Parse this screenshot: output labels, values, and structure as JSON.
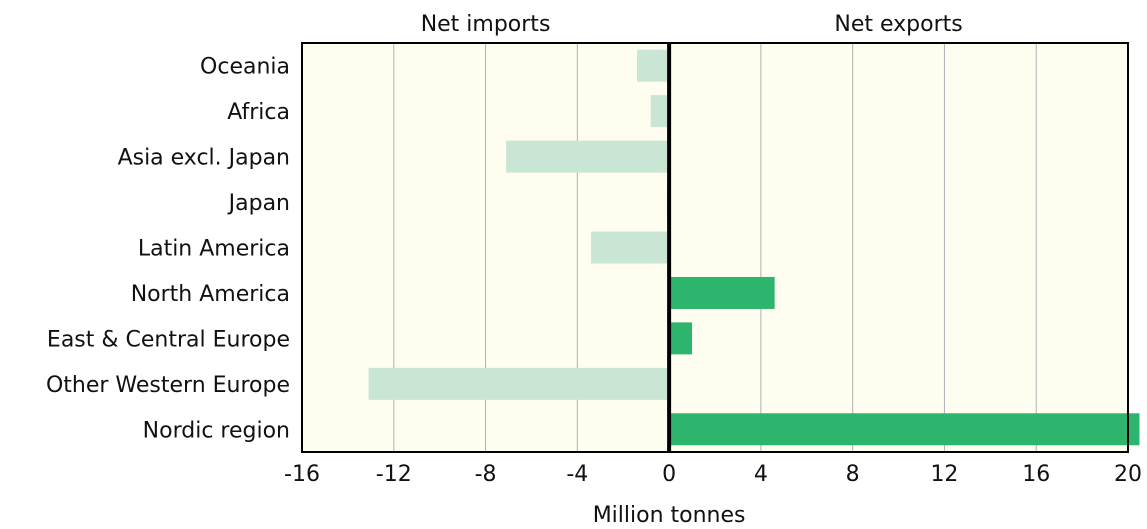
{
  "chart_data": {
    "type": "bar",
    "orientation": "horizontal",
    "categories": [
      "Oceania",
      "Africa",
      "Asia excl. Japan",
      "Japan",
      "Latin America",
      "North America",
      "East & Central Europe",
      "Other Western Europe",
      "Nordic region"
    ],
    "values": [
      -1.4,
      -0.8,
      -7.1,
      -0.1,
      -3.4,
      4.6,
      1.0,
      -13.1,
      20.5
    ],
    "xlabel": "Million tonnes",
    "xlim": [
      -16,
      20
    ],
    "xticks": [
      -16,
      -12,
      -8,
      -4,
      0,
      4,
      8,
      12,
      16,
      20
    ],
    "xtick_labels": [
      "-16",
      "-12",
      "-8",
      "-4",
      "0",
      "4",
      "8",
      "12",
      "16",
      "20"
    ],
    "region_labels": {
      "negative": "Net imports",
      "positive": "Net exports"
    },
    "grid": "vertical",
    "colors": {
      "plot_background": "#fffdf0",
      "negative_bar": "#c8e6d3",
      "positive_bar": "#2db56e",
      "grid": "#b0b0b0",
      "axis": "#000000"
    }
  }
}
